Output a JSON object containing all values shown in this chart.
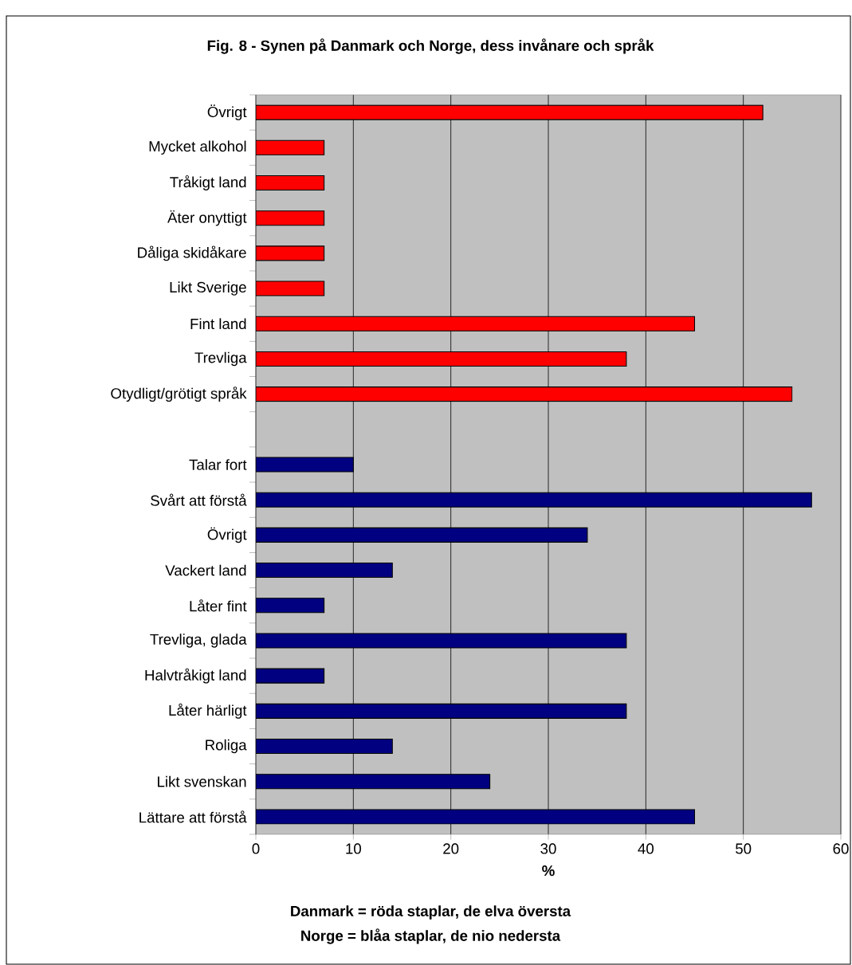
{
  "chart_data": {
    "type": "bar",
    "orientation": "horizontal",
    "title": "Fig. 8 - Synen på Danmark och Norge, dess invånare och språk",
    "xlabel": "%",
    "annotations": [
      "Danmark = röda staplar, de elva översta",
      "Norge = blåa staplar, de nio nedersta"
    ],
    "categories": [
      "Övrigt",
      "Mycket alkohol",
      "Tråkigt land",
      "Äter onyttigt",
      "Dåliga skidåkare",
      "Likt Sverige",
      "Fint land",
      "Trevliga",
      "Otydligt/grötigt språk",
      null,
      "Talar fort",
      "Svårt att förstå",
      "Övrigt",
      "Vackert land",
      "Låter fint",
      "Trevliga, glada",
      "Halvtråkigt land",
      "Låter härligt",
      "Roliga",
      "Likt svenskan",
      "Lättare att förstå"
    ],
    "series": [
      {
        "color": "#ff0000",
        "values": [
          52,
          7,
          7,
          7,
          7,
          7,
          45,
          38,
          55,
          null,
          null,
          null,
          null,
          null,
          null,
          null,
          null,
          null,
          null,
          null,
          null
        ]
      },
      {
        "color": "#000080",
        "values": [
          null,
          null,
          null,
          null,
          null,
          null,
          null,
          null,
          null,
          null,
          10,
          57,
          34,
          14,
          7,
          38,
          7,
          38,
          14,
          24,
          45
        ]
      }
    ],
    "xlim": [
      0,
      60
    ],
    "xticks": [
      0,
      10,
      20,
      30,
      40,
      50,
      60
    ],
    "grid": "x"
  }
}
